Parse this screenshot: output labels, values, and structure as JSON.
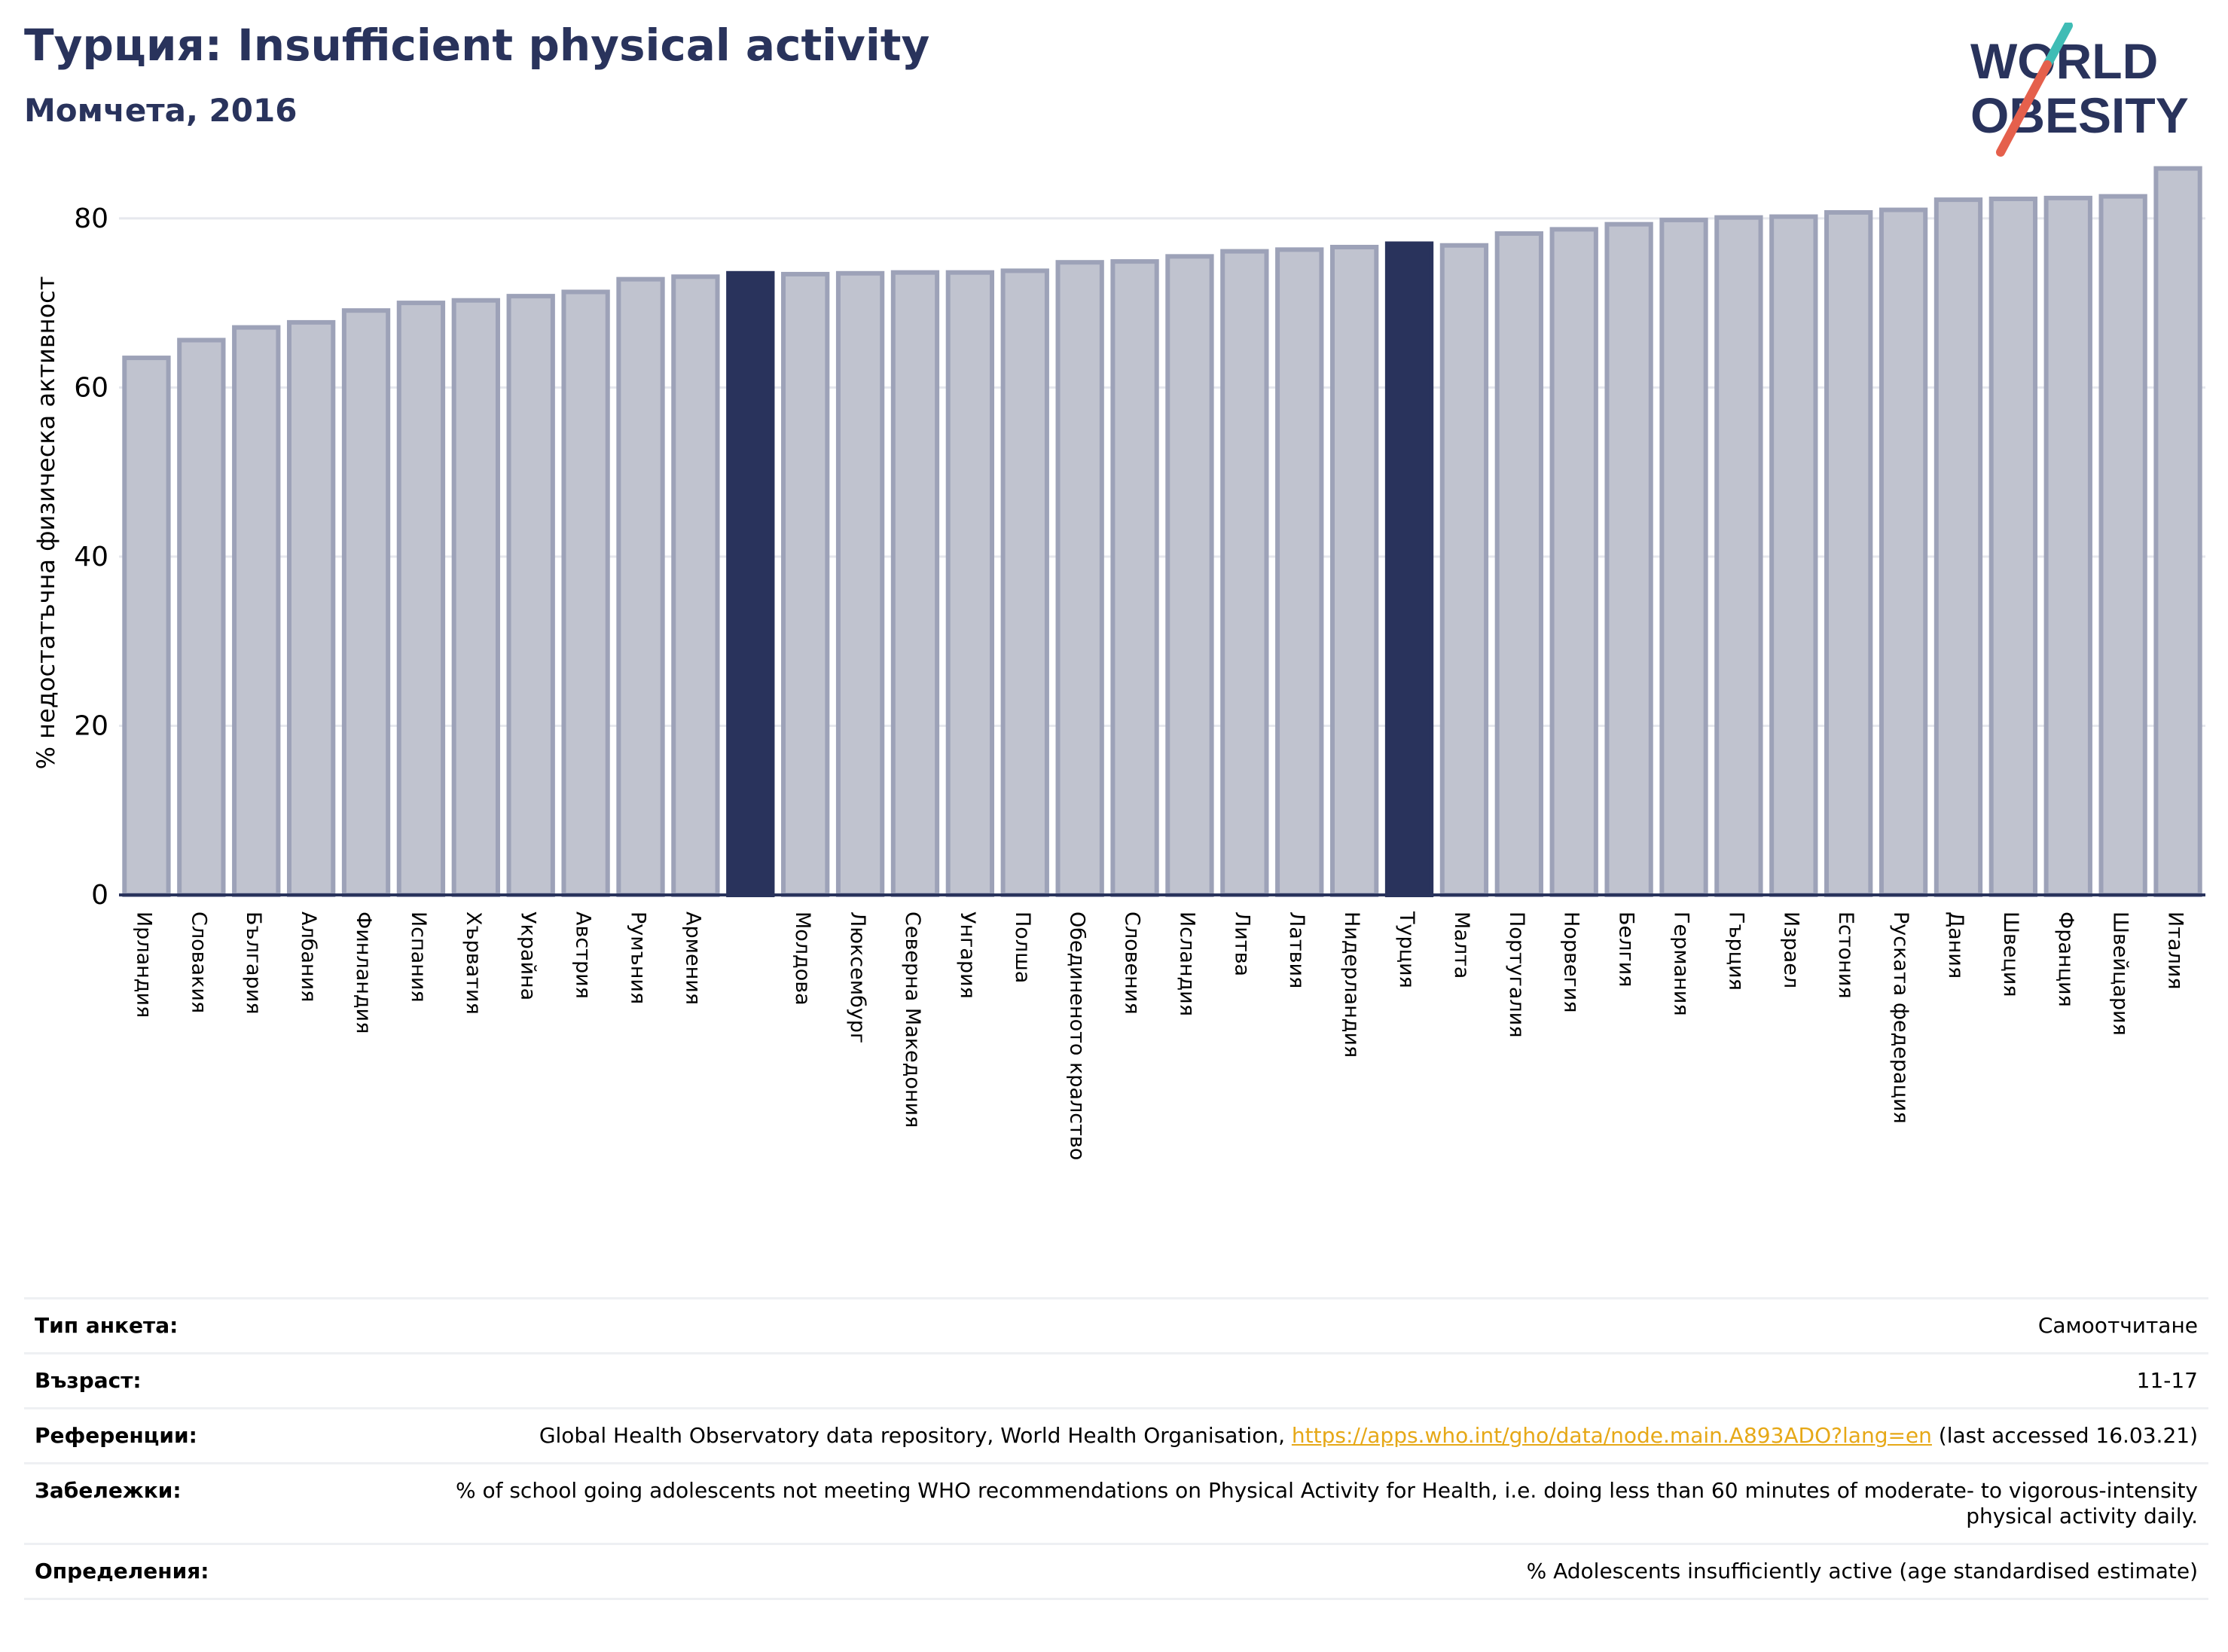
{
  "header": {
    "title": "Турция: Insufficient physical activity",
    "subtitle": "Момчета, 2016",
    "logo_line1": "WORLD",
    "logo_line2": "OBESITY"
  },
  "colors": {
    "title": "#29335c",
    "bar_default": "#c0c3cf",
    "bar_stroke": "#9da2b8",
    "bar_highlight": "#29335c",
    "link": "#e6a817",
    "logo_teal": "#3fbcb5",
    "logo_red": "#e5604c"
  },
  "chart_data": {
    "type": "bar",
    "ylabel": "% недостатъчна физическа активност",
    "ylim": [
      0,
      88
    ],
    "yticks": [
      0,
      20,
      40,
      60,
      80
    ],
    "grid": true,
    "highlighted": [
      "Турция"
    ],
    "categories": [
      "Ирландия",
      "Словакия",
      "България",
      "Албания",
      "Финландия",
      "Испания",
      "Хърватия",
      "Украйна",
      "Австрия",
      "Румъния",
      "Армения",
      "",
      "Молдова",
      "Люксембург",
      "Северна Македония",
      "Унгария",
      "Полша",
      "Обединеното кралство",
      "Словения",
      "Исландия",
      "Литва",
      "Латвия",
      "Нидерландия",
      "Турция",
      "Малта",
      "Португалия",
      "Норвегия",
      "Белгия",
      "Германия",
      "Гърция",
      "Израел",
      "Естония",
      "Руската федерация",
      "Дания",
      "Швеция",
      "Франция",
      "Швейцария",
      "Италия"
    ],
    "values": [
      63.5,
      65.6,
      67.1,
      67.7,
      69.1,
      70.0,
      70.3,
      70.8,
      71.3,
      72.8,
      73.1,
      73.5,
      73.4,
      73.5,
      73.6,
      73.6,
      73.8,
      74.8,
      74.9,
      75.5,
      76.1,
      76.3,
      76.6,
      77.0,
      76.8,
      78.2,
      78.7,
      79.3,
      79.8,
      80.1,
      80.2,
      80.7,
      81.0,
      82.2,
      82.3,
      82.4,
      82.6,
      85.9
    ]
  },
  "meta": [
    {
      "label": "Тип анкета:",
      "value": "Самоотчитане"
    },
    {
      "label": "Възраст:",
      "value": "11-17"
    },
    {
      "label": "Референции:",
      "value_before": "Global Health Observatory data repository, World Health Organisation, ",
      "link": "https://apps.who.int/gho/data/node.main.A893ADO?lang=en",
      "value_after": " (last accessed 16.03.21)"
    },
    {
      "label": "Забележки:",
      "value": "% of school going adolescents not meeting WHO recommendations on Physical Activity for Health, i.e. doing less than 60 minutes of moderate- to vigorous-intensity physical activity daily."
    },
    {
      "label": "Определения:",
      "value": "% Adolescents insufficiently active (age standardised estimate)"
    }
  ]
}
